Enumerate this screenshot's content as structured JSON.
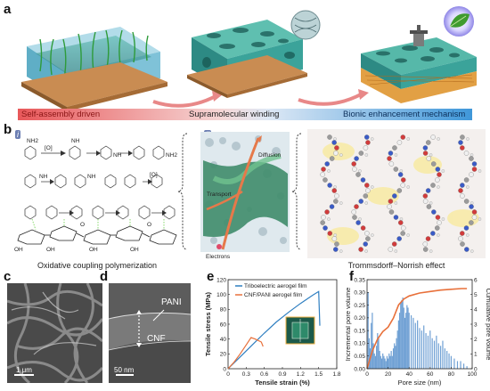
{
  "panel_a": {
    "letter": "a",
    "labels": [
      "Self-assembly driven",
      "Supramolecular winding",
      "Bionic enhancement mechanism"
    ]
  },
  "panel_b": {
    "letter": "b",
    "sub_i": "i",
    "sub_ii": "ii",
    "scheme_labels": [
      "[O]",
      "[O]"
    ],
    "scheme_substituents": [
      "NH2",
      "NH",
      "NH",
      "NH2",
      "NH",
      "NH",
      "OH",
      "OH",
      "OH",
      "OH",
      "O",
      "O"
    ],
    "caption_left": "Oxidative coupling polymerization",
    "diagram_labels": {
      "diffusion": "Diffusion",
      "transport": "Transport",
      "electrons": "Electrons"
    },
    "caption_right": "Trommsdorff–Norrish effect"
  },
  "panel_c": {
    "letter": "c",
    "scale_bar": "1 μm"
  },
  "panel_d": {
    "letter": "d",
    "label_pani": "PANI",
    "label_cnf": "CNF",
    "scale_bar": "50 nm"
  },
  "panel_e": {
    "letter": "e"
  },
  "panel_f": {
    "letter": "f"
  },
  "chart_data": [
    {
      "type": "line",
      "xlabel": "Tensile strain (%)",
      "ylabel": "Tensile stress (MPa)",
      "xlim": [
        0,
        1.8
      ],
      "ylim": [
        0,
        120
      ],
      "xticks": [
        "0",
        "0.3",
        "0.6",
        "0.9",
        "1.2",
        "1.5",
        "1.8"
      ],
      "yticks": [
        "0",
        "20",
        "40",
        "60",
        "80",
        "100",
        "120"
      ],
      "colors": {
        "triboelectric": "#2f7fc1",
        "cnf_pani": "#e8703a"
      },
      "series": [
        {
          "name": "Triboelectric aerogel film",
          "x": [
            0,
            0.2,
            0.4,
            0.6,
            0.8,
            1.0,
            1.2,
            1.4,
            1.5,
            1.52
          ],
          "y": [
            0,
            16,
            32,
            48,
            63,
            76,
            88,
            99,
            104,
            58
          ]
        },
        {
          "name": "CNF/PANI aerogel film",
          "x": [
            0,
            0.1,
            0.2,
            0.3,
            0.38,
            0.45,
            0.5,
            0.55,
            0.58
          ],
          "y": [
            0,
            9,
            20,
            32,
            42,
            40,
            38,
            36,
            30
          ]
        }
      ]
    },
    {
      "type": "bar",
      "xlabel": "Pore size (nm)",
      "ylabel": "Incremental pore volume",
      "y2label": "Cumulative pore volume",
      "xlim": [
        0,
        100
      ],
      "ylim": [
        0,
        0.35
      ],
      "y2lim": [
        0,
        6
      ],
      "xticks": [
        "0",
        "20",
        "40",
        "60",
        "80",
        "100"
      ],
      "yticks": [
        "0.00",
        "0.05",
        "0.10",
        "0.15",
        "0.20",
        "0.25",
        "0.30",
        "0.35"
      ],
      "y2ticks": [
        "0",
        "1",
        "2",
        "3",
        "4",
        "5",
        "6"
      ],
      "colors": {
        "bars": "#6fa0d4",
        "cumulative": "#e8703a"
      },
      "bars": {
        "x": [
          1,
          2,
          3,
          4,
          5,
          6,
          7,
          8,
          9,
          10,
          11,
          12,
          13,
          14,
          15,
          16,
          17,
          18,
          19,
          20,
          21,
          22,
          23,
          24,
          25,
          26,
          27,
          28,
          29,
          30,
          31,
          32,
          33,
          34,
          35,
          36,
          37,
          38,
          39,
          40,
          42,
          44,
          46,
          48,
          50,
          52,
          54,
          56,
          58,
          60,
          62,
          64,
          66,
          68,
          70,
          72,
          74,
          76,
          78,
          80,
          83,
          86,
          89,
          92,
          95
        ],
        "y": [
          0.3,
          0.12,
          0.08,
          0.18,
          0.22,
          0.1,
          0.06,
          0.05,
          0.09,
          0.14,
          0.12,
          0.07,
          0.05,
          0.04,
          0.06,
          0.05,
          0.04,
          0.03,
          0.05,
          0.04,
          0.06,
          0.05,
          0.07,
          0.05,
          0.08,
          0.1,
          0.09,
          0.12,
          0.15,
          0.19,
          0.22,
          0.26,
          0.27,
          0.28,
          0.24,
          0.2,
          0.22,
          0.25,
          0.24,
          0.22,
          0.21,
          0.2,
          0.18,
          0.19,
          0.16,
          0.15,
          0.17,
          0.14,
          0.13,
          0.15,
          0.12,
          0.11,
          0.13,
          0.1,
          0.09,
          0.11,
          0.08,
          0.07,
          0.06,
          0.05,
          0.04,
          0.03,
          0.03,
          0.02,
          0.01
        ]
      },
      "cumulative": {
        "x": [
          0,
          5,
          10,
          15,
          20,
          25,
          30,
          35,
          40,
          50,
          60,
          70,
          80,
          90,
          95
        ],
        "y": [
          0,
          1.2,
          2.0,
          2.5,
          2.8,
          3.4,
          4.3,
          4.7,
          4.9,
          5.1,
          5.2,
          5.3,
          5.35,
          5.4,
          5.4
        ]
      }
    }
  ]
}
